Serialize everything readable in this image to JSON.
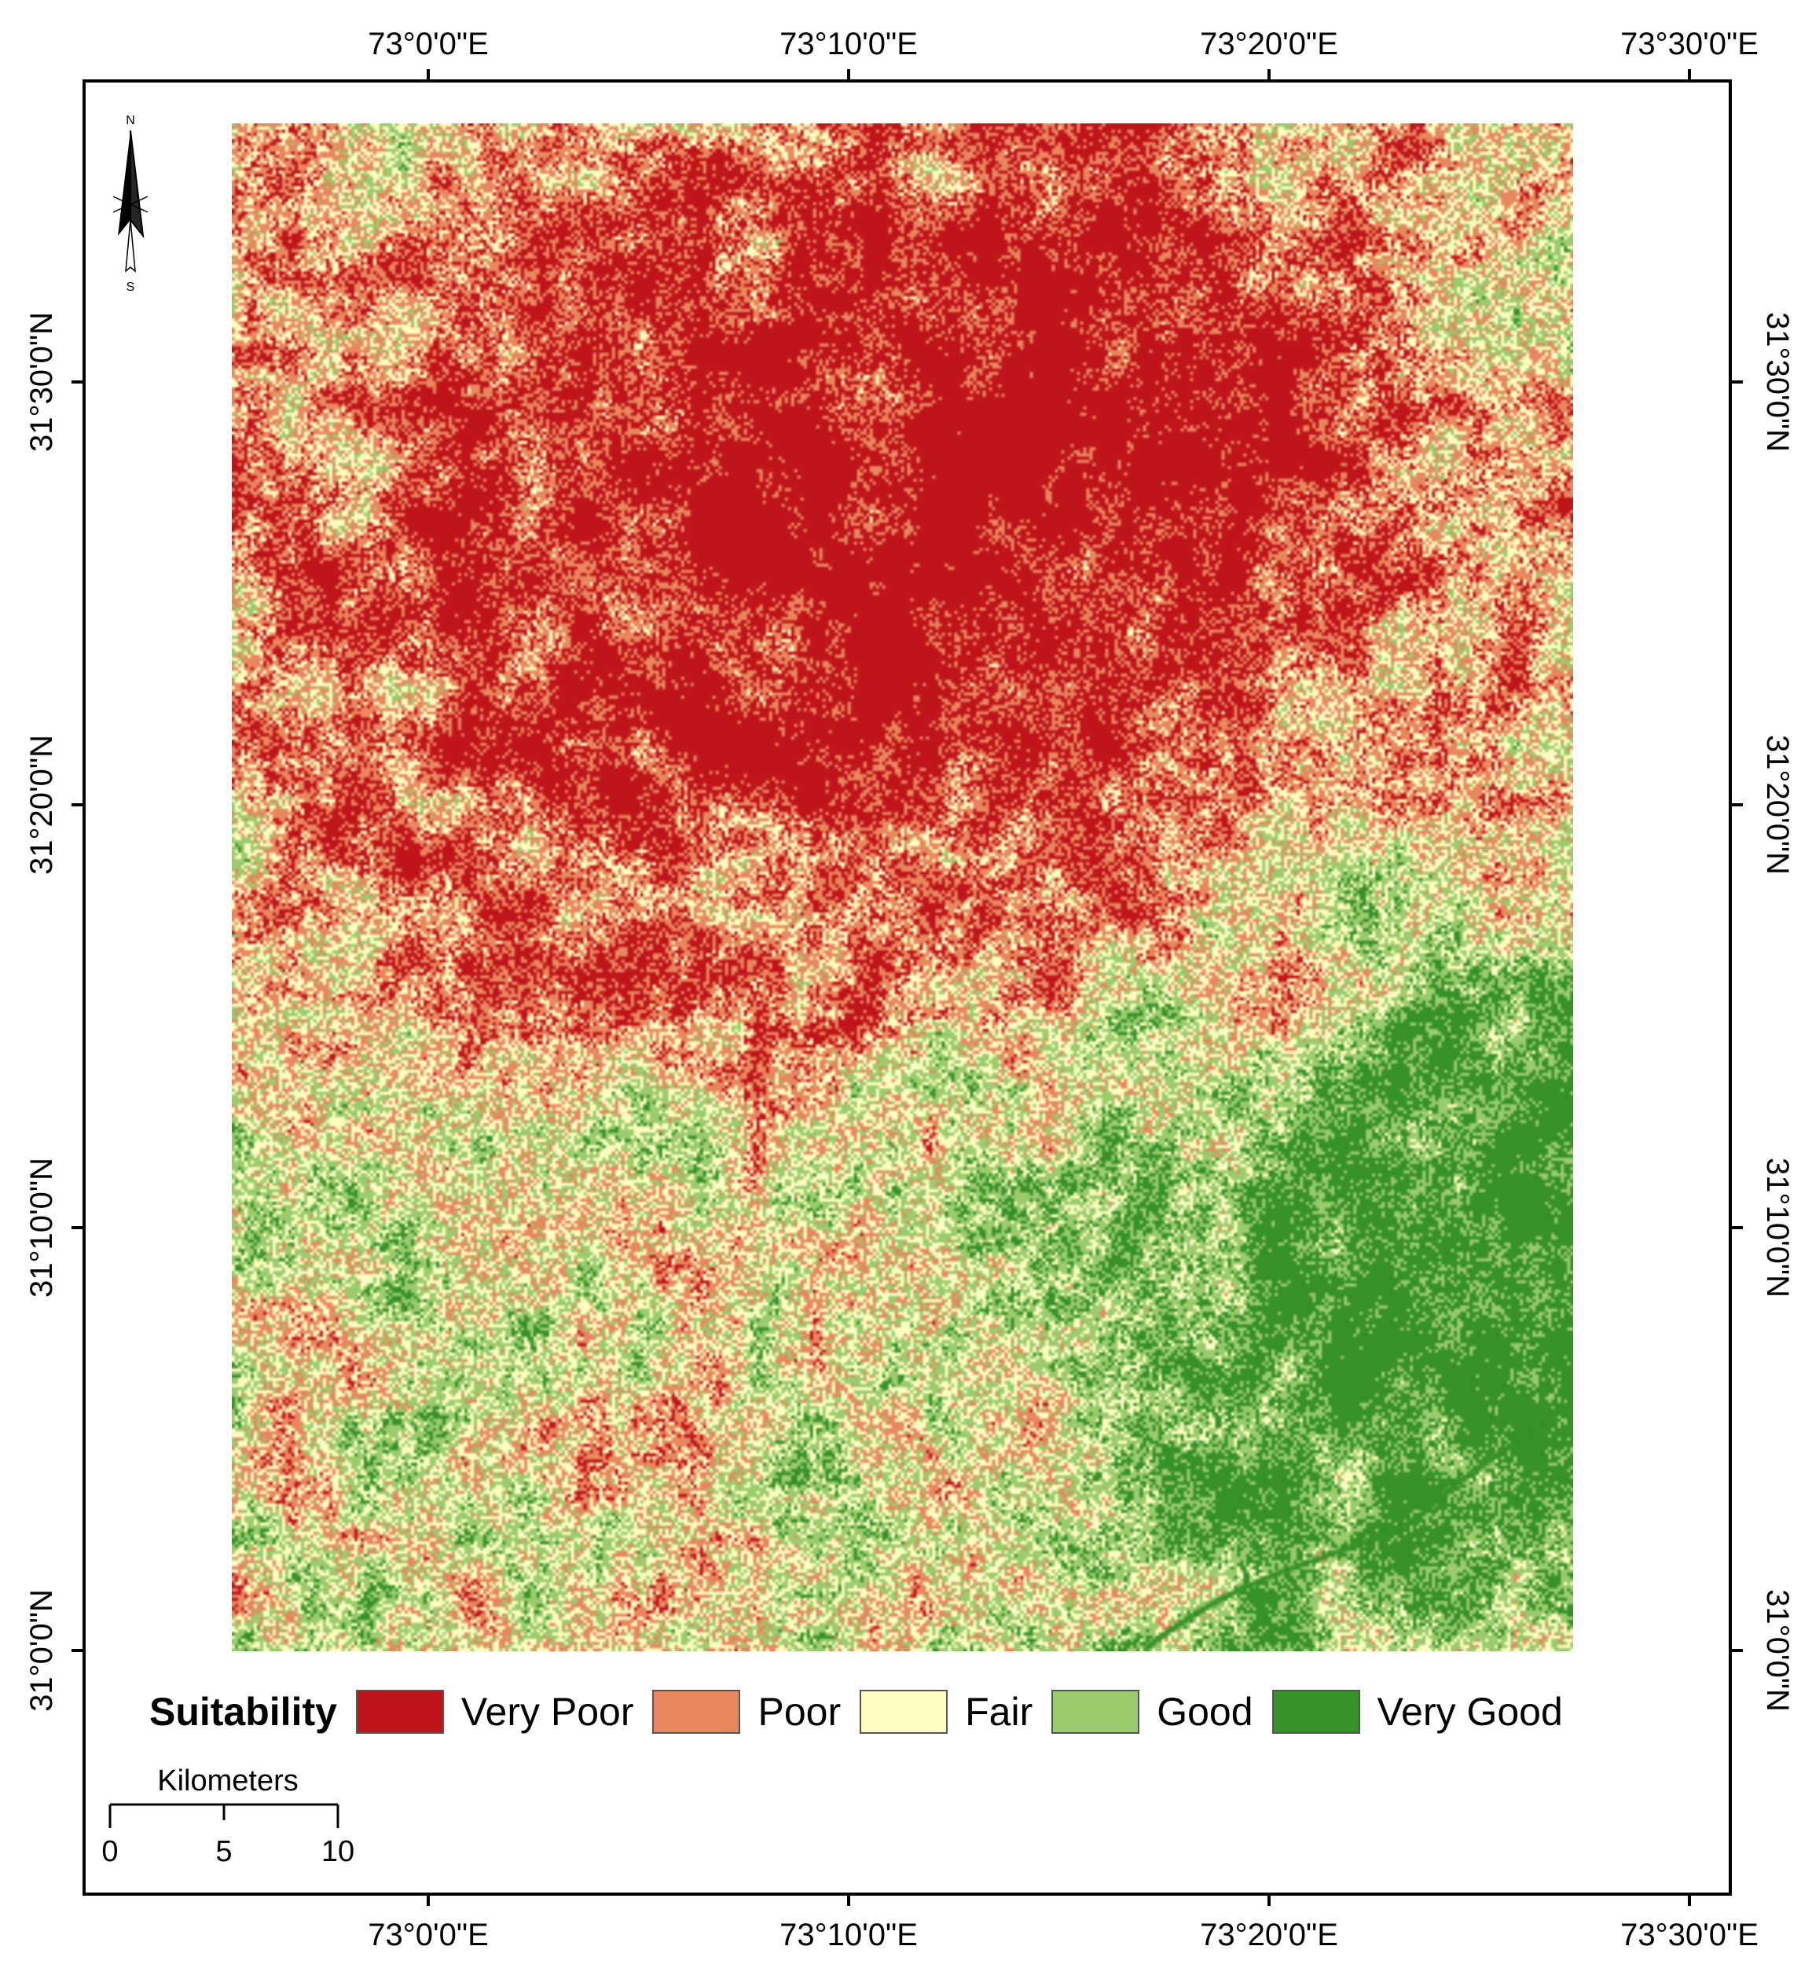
{
  "map": {
    "top_ticks": [
      "73°0'0\"E",
      "73°10'0\"E",
      "73°20'0\"E",
      "73°30'0\"E"
    ],
    "bottom_ticks": [
      "73°0'0\"E",
      "73°10'0\"E",
      "73°20'0\"E",
      "73°30'0\"E"
    ],
    "left_ticks": [
      "31°30'0\"N",
      "31°20'0\"N",
      "31°10'0\"N",
      "31°0'0\"N"
    ],
    "right_ticks": [
      "31°30'0\"N",
      "31°20'0\"N",
      "31°10'0\"N",
      "31°0'0\"N"
    ]
  },
  "legend": {
    "title": "Suitability",
    "classes": [
      {
        "label": "Very Poor",
        "color": "#c0141b"
      },
      {
        "label": "Poor",
        "color": "#e8875d"
      },
      {
        "label": "Fair",
        "color": "#fdfdc0"
      },
      {
        "label": "Good",
        "color": "#9acb6c"
      },
      {
        "label": "Very Good",
        "color": "#359128"
      }
    ]
  },
  "scalebar": {
    "unit": "Kilometers",
    "labels": [
      "0",
      "5",
      "10"
    ]
  },
  "north_arrow": {
    "north_label": "N",
    "south_label": "S",
    "icon": "north-arrow-icon"
  }
}
